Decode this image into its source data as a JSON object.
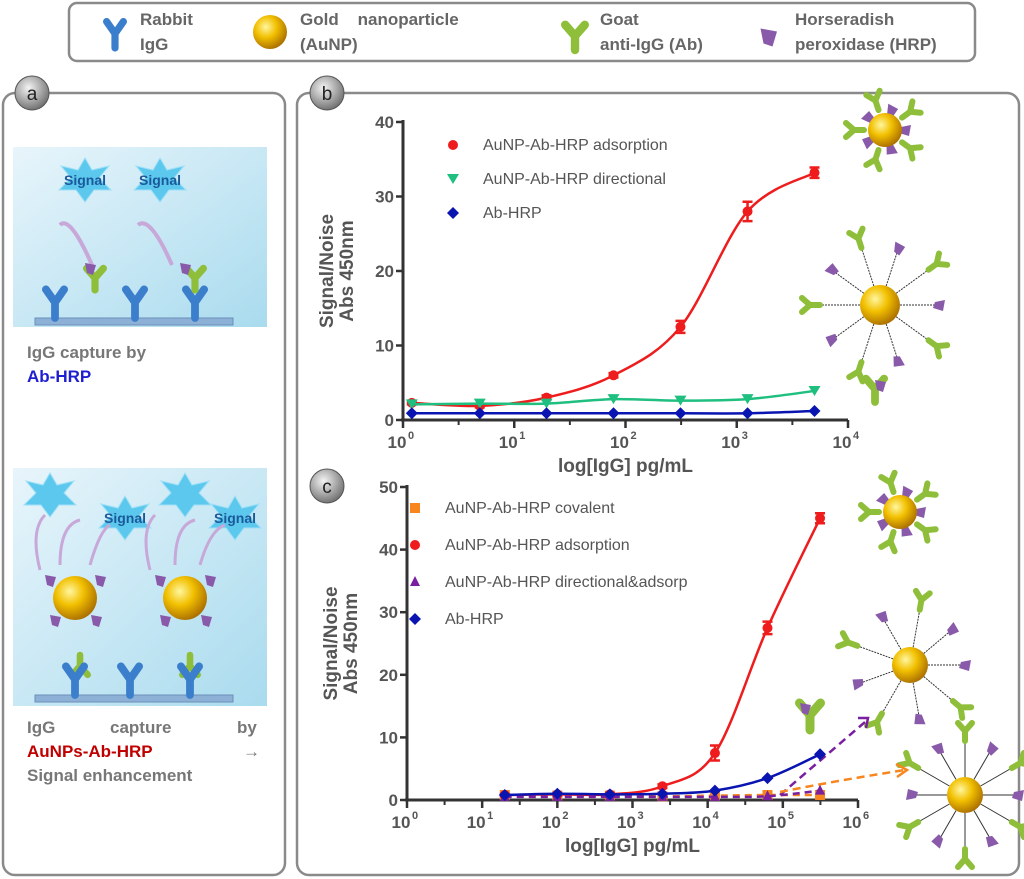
{
  "legend": {
    "items": [
      {
        "label1": "Rabbit",
        "label2": "IgG",
        "icon": "rabbit-igg-icon"
      },
      {
        "label1": "Gold    nanoparticle",
        "label2": "(AuNP)",
        "icon": "gold-nanoparticle-icon"
      },
      {
        "label1": "Goat",
        "label2": "anti-IgG (Ab)",
        "icon": "goat-anti-igg-icon"
      },
      {
        "label1": "Horseradish",
        "label2": "peroxidase (HRP)",
        "icon": "hrp-icon"
      }
    ]
  },
  "panel_a": {
    "label": "a",
    "signal": "Signal",
    "caption1_line1": "IgG capture by",
    "caption1_line2": "Ab-HRP",
    "caption2_w1": "IgG",
    "caption2_w2": "capture",
    "caption2_w3": "by",
    "caption2_line2": "AuNPs-Ab-HRP",
    "caption2_arrow": "→",
    "caption2_line3": "Signal enhancement",
    "colors": {
      "blue": "#1f1fd0",
      "red": "#c00000"
    }
  },
  "chart_data": [
    {
      "panel": "b",
      "type": "scatter",
      "xscale": "log",
      "xlim": [
        1,
        10000
      ],
      "ylim": [
        0,
        40
      ],
      "xticks": [
        "10",
        "10",
        "10",
        "10",
        "10"
      ],
      "xtick_exp": [
        "0",
        "1",
        "2",
        "3",
        "4"
      ],
      "yticks": [
        "0",
        "10",
        "20",
        "30",
        "40"
      ],
      "xlabel": "log[IgG] pg/mL",
      "ylabel1": "Signal/Noise",
      "ylabel2": "Abs 450nm",
      "legend_position": "top-left",
      "x": [
        1.2,
        4.9,
        19.5,
        78,
        312,
        1250,
        5000
      ],
      "series": [
        {
          "name": "AuNP-Ab-HRP adsorption",
          "color": "#ee1c1c",
          "marker": "circle",
          "values": [
            2.3,
            1.9,
            3.0,
            6.0,
            12.5,
            28.0,
            33.2
          ],
          "errors": [
            0.2,
            0.2,
            0.3,
            0.3,
            0.8,
            1.3,
            0.7
          ]
        },
        {
          "name": "AuNP-Ab-HRP directional",
          "color": "#1fbf7f",
          "marker": "triangle-down",
          "values": [
            2.1,
            2.2,
            2.2,
            2.8,
            2.6,
            2.8,
            3.9
          ]
        },
        {
          "name": "Ab-HRP",
          "color": "#0a14b0",
          "marker": "diamond",
          "values": [
            0.9,
            0.9,
            0.9,
            0.9,
            0.9,
            0.9,
            1.2
          ]
        }
      ]
    },
    {
      "panel": "c",
      "type": "scatter",
      "xscale": "log",
      "xlim": [
        1,
        1000000
      ],
      "ylim": [
        0,
        50
      ],
      "xticks": [
        "10",
        "10",
        "10",
        "10",
        "10",
        "10",
        "10"
      ],
      "xtick_exp": [
        "0",
        "1",
        "2",
        "3",
        "4",
        "5",
        "6"
      ],
      "yticks": [
        "0",
        "10",
        "20",
        "30",
        "40",
        "50"
      ],
      "xlabel": "log[IgG] pg/mL",
      "ylabel1": "Signal/Noise",
      "ylabel2": "Abs 450nm",
      "legend_position": "top-left",
      "x": [
        20,
        100,
        500,
        2500,
        12500,
        62500,
        312500
      ],
      "series": [
        {
          "name": "AuNP-Ab-HRP covalent",
          "color": "#f7861e",
          "marker": "square",
          "dashed": true,
          "values": [
            0.8,
            0.7,
            0.7,
            0.6,
            0.7,
            0.8,
            0.8
          ]
        },
        {
          "name": "AuNP-Ab-HRP adsorption",
          "color": "#ee1c1c",
          "marker": "circle",
          "values": [
            0.8,
            0.9,
            0.9,
            2.2,
            7.5,
            27.5,
            45.0
          ],
          "errors": [
            0.2,
            0.2,
            0.2,
            0.3,
            1.2,
            1.0,
            0.8
          ]
        },
        {
          "name": "AuNP-Ab-HRP directional&adsorp",
          "color": "#7a1fa0",
          "marker": "triangle",
          "dashed": true,
          "values": [
            0.5,
            0.5,
            0.5,
            0.5,
            0.5,
            0.6,
            1.5
          ]
        },
        {
          "name": "Ab-HRP",
          "color": "#0a14b0",
          "marker": "diamond",
          "values": [
            0.8,
            1.0,
            0.9,
            1.0,
            1.5,
            3.5,
            7.3
          ]
        }
      ]
    }
  ]
}
